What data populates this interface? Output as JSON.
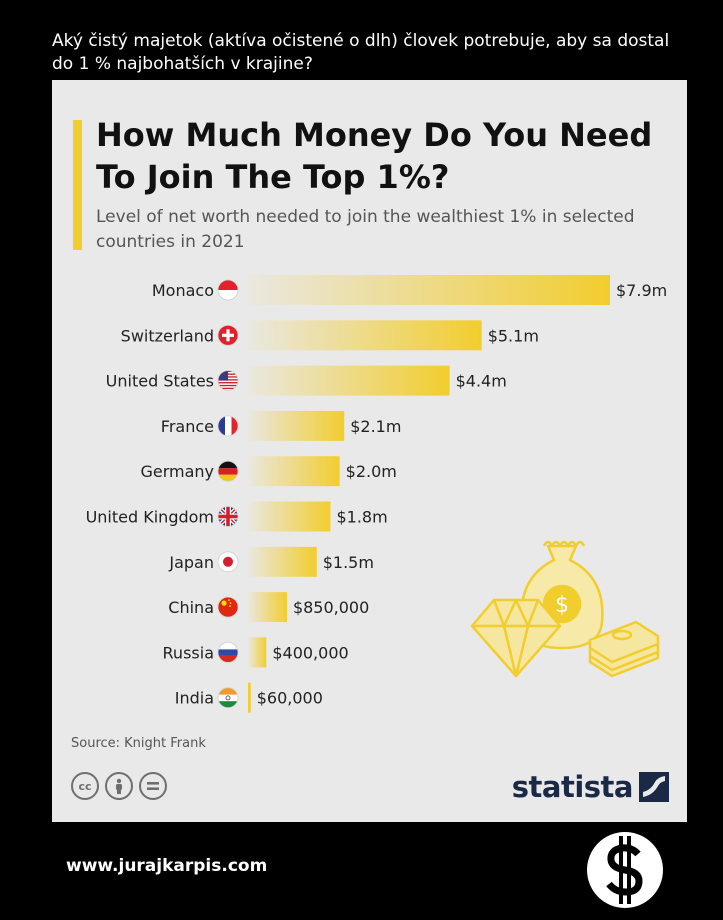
{
  "question": "Aký čistý majetok (aktíva očistené o dlh) človek potrebuje, aby sa dostal do 1 % najbohatších v krajine?",
  "title": "How Much Money Do You Need To Join The Top 1%?",
  "subtitle": "Level of net worth needed to join the wealthiest 1% in selected countries in 2021",
  "source": "Source: Knight Frank",
  "logo_text": "statista",
  "footer_url": "www.jurajkarpis.com",
  "cc_icons": [
    "cc-icon",
    "attribution-icon",
    "no-derivatives-icon"
  ],
  "colors": {
    "bar": "#f2cd2e",
    "background": "#e9e9ea",
    "accent": "#f2cd2e",
    "logo": "#1a2a46"
  },
  "chart_data": {
    "type": "bar",
    "orientation": "horizontal",
    "title": "How Much Money Do You Need To Join The Top 1%?",
    "subtitle": "Level of net worth needed to join the wealthiest 1% in selected countries in 2021",
    "categories": [
      "Monaco",
      "Switzerland",
      "United States",
      "France",
      "Germany",
      "United Kingdom",
      "Japan",
      "China",
      "Russia",
      "India"
    ],
    "values": [
      7900000,
      5100000,
      4400000,
      2100000,
      2000000,
      1800000,
      1500000,
      850000,
      400000,
      60000
    ],
    "labels": [
      "$7.9m",
      "$5.1m",
      "$4.4m",
      "$2.1m",
      "$2.0m",
      "$1.8m",
      "$1.5m",
      "$850,000",
      "$400,000",
      "$60,000"
    ],
    "flags": [
      "monaco-flag-icon",
      "switzerland-flag-icon",
      "usa-flag-icon",
      "france-flag-icon",
      "germany-flag-icon",
      "uk-flag-icon",
      "japan-flag-icon",
      "china-flag-icon",
      "russia-flag-icon",
      "india-flag-icon"
    ],
    "xlim": [
      0,
      7900000
    ],
    "grid": false,
    "source": "Knight Frank"
  }
}
